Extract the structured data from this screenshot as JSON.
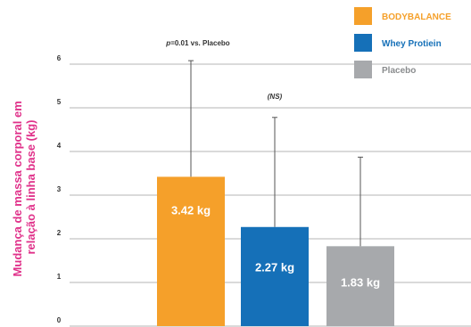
{
  "chart_data": {
    "type": "bar",
    "categories": [
      "BODYBALANCE",
      "Whey Protiein",
      "Placebo"
    ],
    "values": [
      3.42,
      2.27,
      1.83
    ],
    "error_upper": [
      6.08,
      4.78,
      3.87
    ],
    "value_labels": [
      "3.42 kg",
      "2.27 kg",
      "1.83 kg"
    ],
    "colors": [
      "#f5a02a",
      "#1570b8",
      "#a7a9ac"
    ],
    "ylabel_lines": [
      "Mudança de massa corporal em",
      "relação à linha base (kg)"
    ],
    "ylabel_color": "#e0318a",
    "ylim": [
      0,
      6
    ],
    "yticks": [
      "0",
      "1",
      "2",
      "3",
      "4",
      "5",
      "6"
    ],
    "grid": true,
    "legend_position": "top-right",
    "annotations": {
      "bodybalance_p": "p",
      "bodybalance_rest": "=0.01 vs. Placebo",
      "whey_ns": "(NS)"
    }
  }
}
